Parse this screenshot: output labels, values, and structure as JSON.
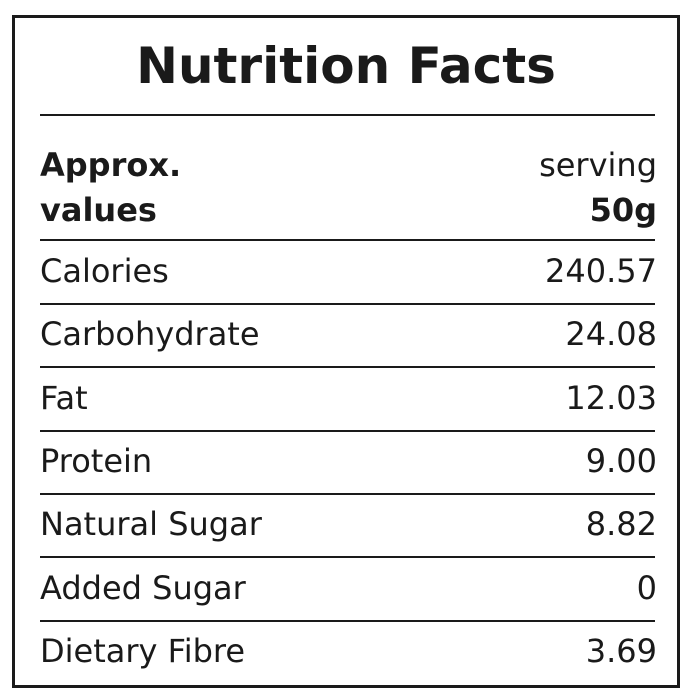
{
  "header": {
    "title": "Nutrition Facts",
    "left": "Approx. values",
    "serving_label": "serving",
    "serving_size": "50g"
  },
  "table": {
    "rows": [
      [
        "Calories",
        "240.57"
      ],
      [
        "Carbohydrate",
        "24.08"
      ],
      [
        "Fat",
        "12.03"
      ],
      [
        "Protein",
        "9.00"
      ],
      [
        "Natural Sugar",
        "8.82"
      ],
      [
        "Added Sugar",
        "0"
      ],
      [
        "Dietary Fibre",
        "3.69"
      ]
    ]
  }
}
